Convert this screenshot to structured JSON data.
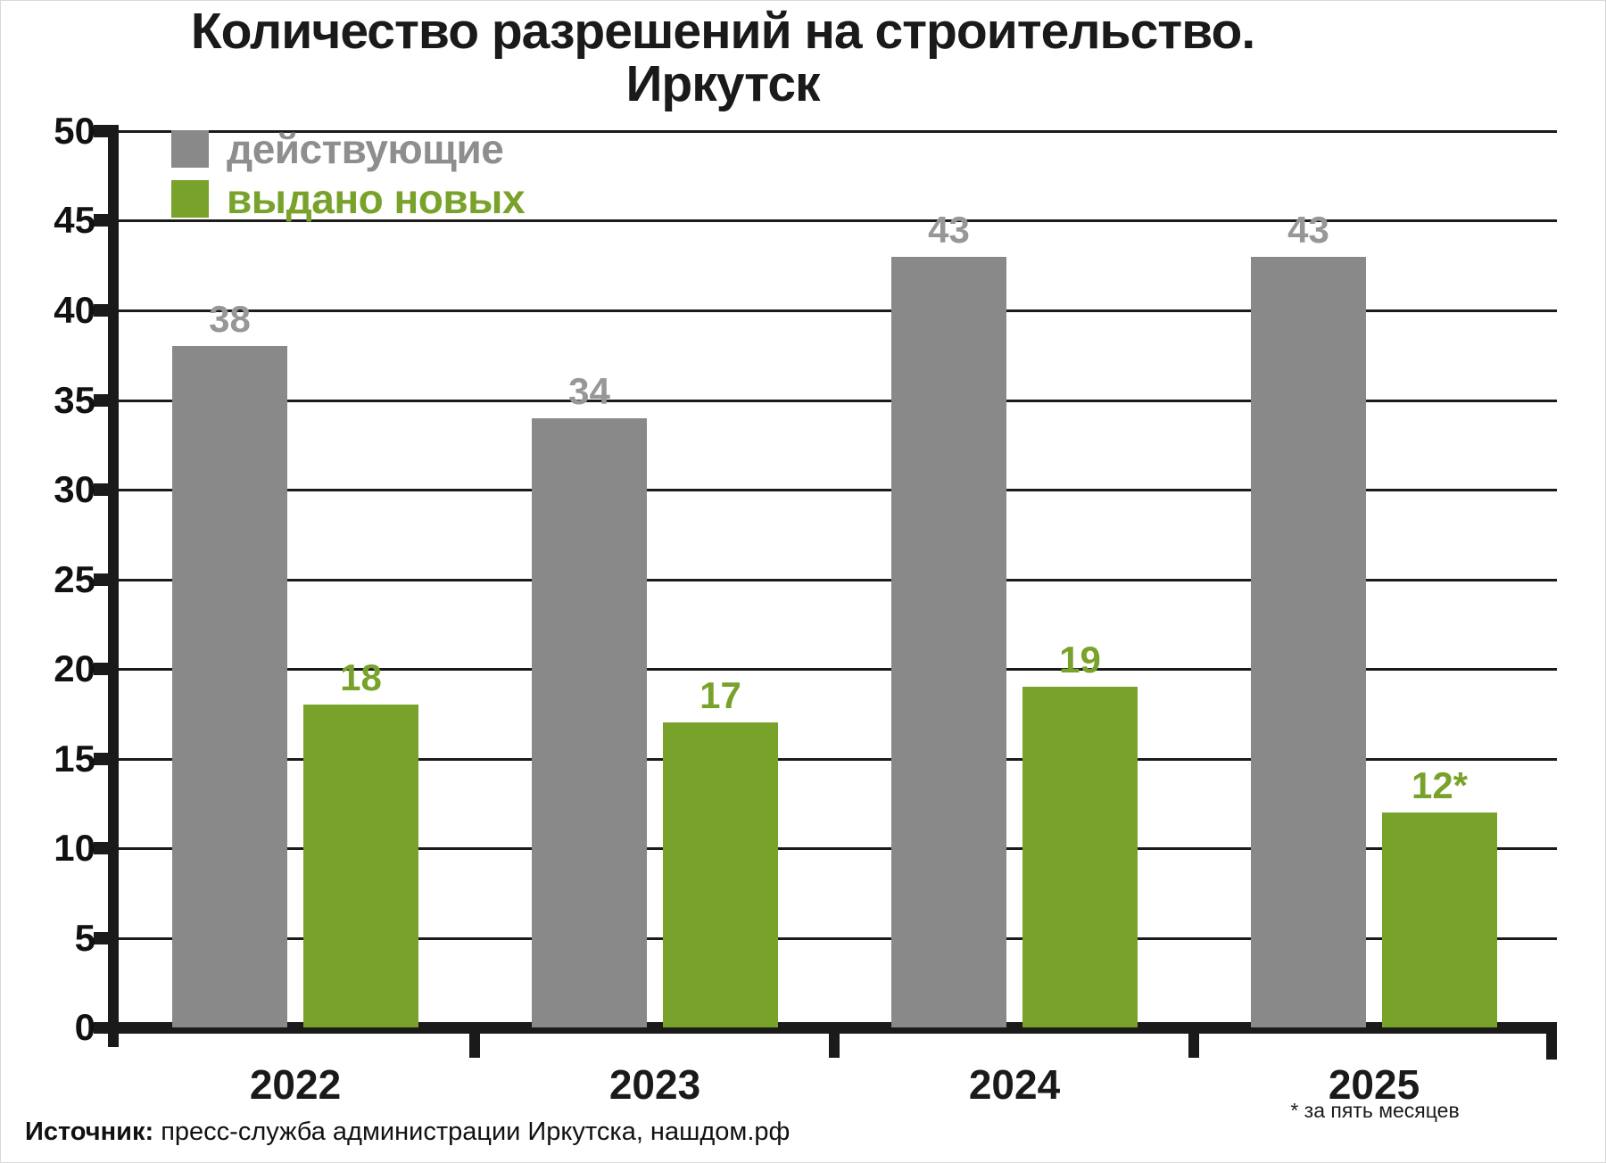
{
  "title": {
    "line1": "Количество разрешений на строительство.",
    "line2": "Иркутск"
  },
  "legend": [
    {
      "label": "действующие",
      "color": "#898989",
      "text_color": "#8e8e8e"
    },
    {
      "label": "выдано новых",
      "color": "#79a22b",
      "text_color": "#79a22b"
    }
  ],
  "chart_data": {
    "type": "bar",
    "title": "Количество разрешений на строительство. Иркутск",
    "categories": [
      "2022",
      "2023",
      "2024",
      "2025"
    ],
    "series": [
      {
        "name": "действующие",
        "color": "#898989",
        "label_color": "#979797",
        "values": [
          38,
          34,
          43,
          43
        ],
        "labels": [
          "38",
          "34",
          "43",
          "43"
        ]
      },
      {
        "name": "выдано новых",
        "color": "#79a22b",
        "label_color": "#79a22b",
        "values": [
          18,
          17,
          19,
          12
        ],
        "labels": [
          "18",
          "17",
          "19",
          "12*"
        ]
      }
    ],
    "ylim": [
      0,
      50
    ],
    "ytick_step": 5,
    "yticks": [
      0,
      5,
      10,
      15,
      20,
      25,
      30,
      35,
      40,
      45,
      50
    ],
    "grid": true,
    "legend_position": "top-left-inside",
    "xlabel": "",
    "ylabel": ""
  },
  "footnote": "* за пять месяцев",
  "source": {
    "label_bold": "Источник:",
    "text": " пресс-служба администрации Иркутска, нашдом.рф"
  }
}
